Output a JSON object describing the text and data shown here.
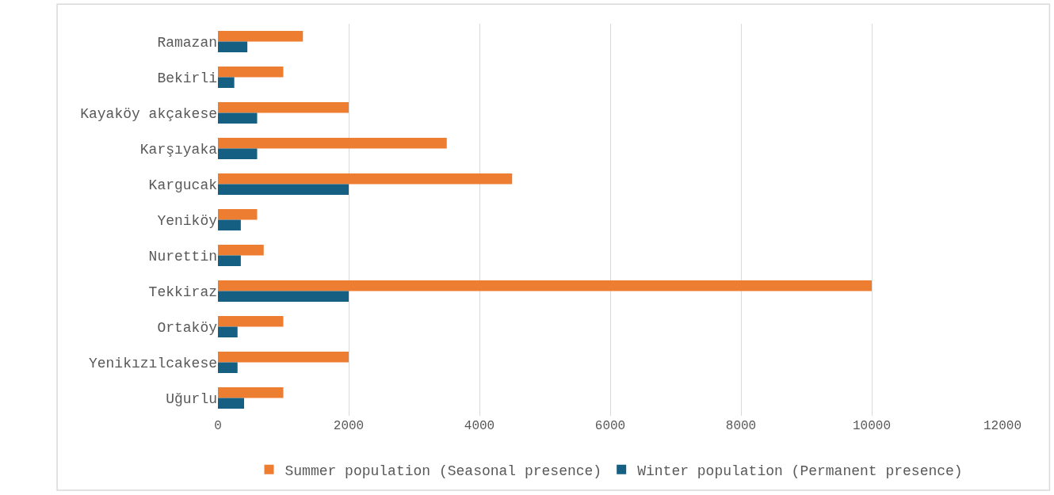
{
  "chart_data": {
    "type": "bar",
    "orientation": "horizontal",
    "categories": [
      "Ramazan",
      "Bekirli",
      "Kayaköy akçakese",
      "Karşıyaka",
      "Kargucak",
      "Yeniköy",
      "Nurettin",
      "Tekkiraz",
      "Ortaköy",
      "Yenikızılcakese",
      "Uğurlu"
    ],
    "series": [
      {
        "name": "Summer population (Seasonal presence)",
        "color": "#ed7d31",
        "values": [
          1300,
          1000,
          2000,
          3500,
          4500,
          600,
          700,
          10000,
          1000,
          2000,
          1000
        ]
      },
      {
        "name": "Winter population (Permanent presence)",
        "color": "#156082",
        "values": [
          450,
          250,
          600,
          600,
          2000,
          350,
          350,
          2000,
          300,
          300,
          400
        ]
      }
    ],
    "xlim": [
      0,
      12000
    ],
    "xticks": [
      0,
      2000,
      4000,
      6000,
      8000,
      10000,
      12000
    ],
    "grid": "x",
    "legend": "bottom"
  }
}
